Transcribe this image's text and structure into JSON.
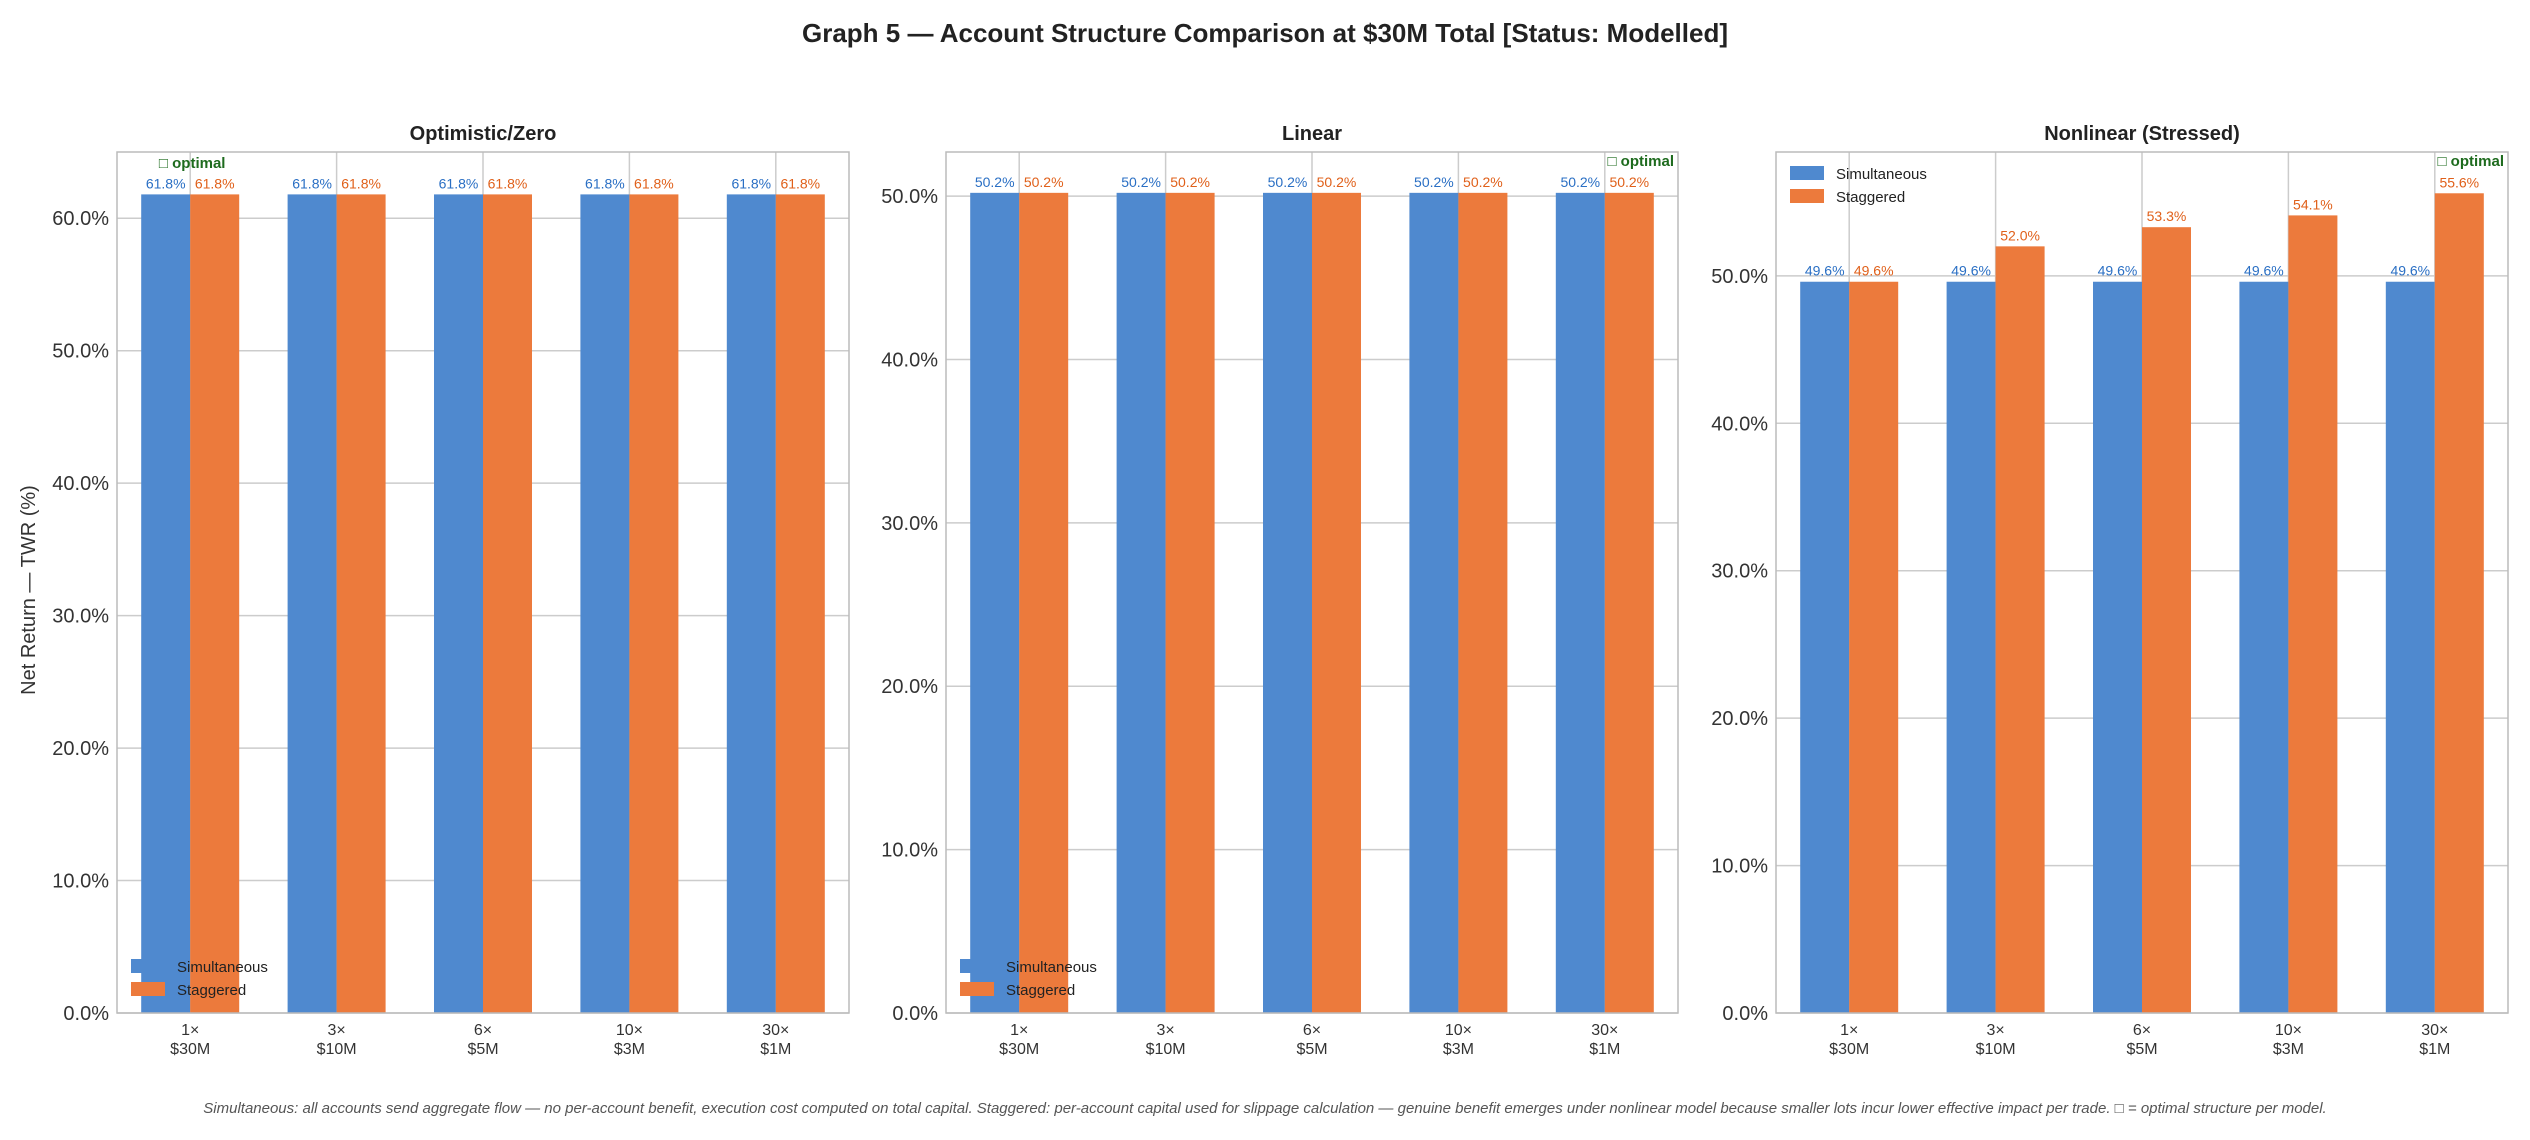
{
  "title": "Graph 5 — Account Structure Comparison at $30M Total  [Status: Modelled]",
  "footnote": "Simultaneous: all accounts send aggregate flow — no per-account benefit, execution cost computed on total capital. Staggered: per-account capital used for slippage calculation — genuine benefit emerges under nonlinear model because smaller lots incur lower effective impact per trade. □ = optimal structure per model.",
  "colors": {
    "simultaneous": "#4f89cf",
    "staggered": "#ec7a3c",
    "simultaneous_label": "#2a6fc4",
    "staggered_label": "#e0601a",
    "optimal": "#1e6b1e"
  },
  "chart_data": [
    {
      "type": "bar",
      "title": "Optimistic/Zero",
      "ylabel": "Net Return — TWR (%)",
      "xlabel": "",
      "categories": [
        [
          "1×",
          "$30M"
        ],
        [
          "3×",
          "$10M"
        ],
        [
          "6×",
          "$5M"
        ],
        [
          "10×",
          "$3M"
        ],
        [
          "30×",
          "$1M"
        ]
      ],
      "series": [
        {
          "name": "Simultaneous",
          "values": [
            61.8,
            61.8,
            61.8,
            61.8,
            61.8
          ],
          "labels": [
            "61.8%",
            "61.8%",
            "61.8%",
            "61.8%",
            "61.8%"
          ]
        },
        {
          "name": "Staggered",
          "values": [
            61.8,
            61.8,
            61.8,
            61.8,
            61.8
          ],
          "labels": [
            "61.8%",
            "61.8%",
            "61.8%",
            "61.8%",
            "61.8%"
          ]
        }
      ],
      "ylim": [
        0,
        65
      ],
      "yticks": [
        "0.0%",
        "10.0%",
        "20.0%",
        "30.0%",
        "40.0%",
        "50.0%",
        "60.0%"
      ],
      "ytick_values": [
        0,
        10,
        20,
        30,
        40,
        50,
        60
      ],
      "optimal_label": "□ optimal",
      "optimal_index": 0,
      "legend_loc": "lower left",
      "grid": true
    },
    {
      "type": "bar",
      "title": "Linear",
      "categories": [
        [
          "1×",
          "$30M"
        ],
        [
          "3×",
          "$10M"
        ],
        [
          "6×",
          "$5M"
        ],
        [
          "10×",
          "$3M"
        ],
        [
          "30×",
          "$1M"
        ]
      ],
      "series": [
        {
          "name": "Simultaneous",
          "values": [
            50.2,
            50.2,
            50.2,
            50.2,
            50.2
          ],
          "labels": [
            "50.2%",
            "50.2%",
            "50.2%",
            "50.2%",
            "50.2%"
          ]
        },
        {
          "name": "Staggered",
          "values": [
            50.2,
            50.2,
            50.2,
            50.2,
            50.2
          ],
          "labels": [
            "50.2%",
            "50.2%",
            "50.2%",
            "50.2%",
            "50.2%"
          ]
        }
      ],
      "ylim": [
        0,
        52.7
      ],
      "yticks": [
        "0.0%",
        "10.0%",
        "20.0%",
        "30.0%",
        "40.0%",
        "50.0%"
      ],
      "ytick_values": [
        0,
        10,
        20,
        30,
        40,
        50
      ],
      "optimal_label": "□ optimal",
      "optimal_index": 4,
      "legend_loc": "lower left",
      "grid": true
    },
    {
      "type": "bar",
      "title": "Nonlinear (Stressed)",
      "categories": [
        [
          "1×",
          "$30M"
        ],
        [
          "3×",
          "$10M"
        ],
        [
          "6×",
          "$5M"
        ],
        [
          "10×",
          "$3M"
        ],
        [
          "30×",
          "$1M"
        ]
      ],
      "series": [
        {
          "name": "Simultaneous",
          "values": [
            49.6,
            49.6,
            49.6,
            49.6,
            49.6
          ],
          "labels": [
            "49.6%",
            "49.6%",
            "49.6%",
            "49.6%",
            "49.6%"
          ]
        },
        {
          "name": "Staggered",
          "values": [
            49.6,
            52.0,
            53.3,
            54.1,
            55.6
          ],
          "labels": [
            "49.6%",
            "52.0%",
            "53.3%",
            "54.1%",
            "55.6%"
          ]
        }
      ],
      "ylim": [
        0,
        58.4
      ],
      "yticks": [
        "0.0%",
        "10.0%",
        "20.0%",
        "30.0%",
        "40.0%",
        "50.0%"
      ],
      "ytick_values": [
        0,
        10,
        20,
        30,
        40,
        50
      ],
      "optimal_label": "□ optimal",
      "optimal_index": 4,
      "legend_loc": "upper left",
      "grid": true
    }
  ]
}
